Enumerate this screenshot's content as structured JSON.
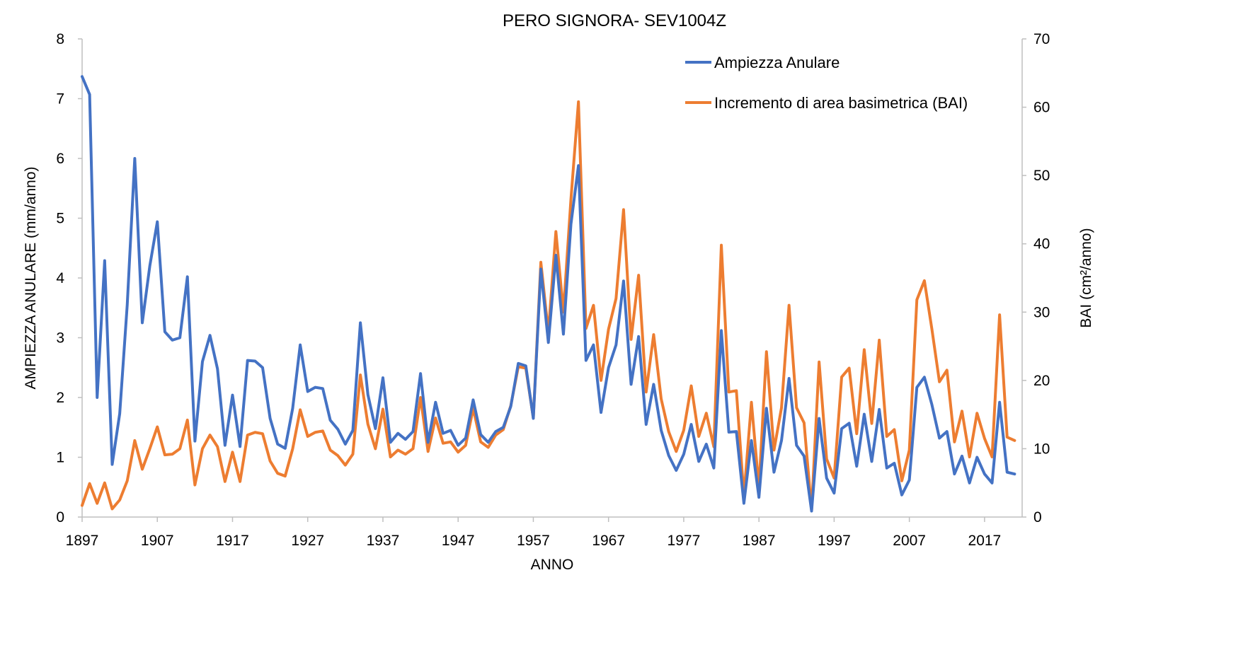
{
  "chart_data": {
    "type": "line",
    "title": "PERO SIGNORA- SEV1004Z",
    "xlabel": "ANNO",
    "ylabel_left": "AMPIEZZA ANULARE (mm/anno)",
    "ylabel_right": "BAI (cm²/anno)",
    "xlim": [
      1897,
      2022
    ],
    "x_ticks": [
      1897,
      1907,
      1917,
      1927,
      1937,
      1947,
      1957,
      1967,
      1977,
      1987,
      1997,
      2007,
      2017
    ],
    "ylim_left": [
      0,
      8
    ],
    "y_ticks_left": [
      0,
      1,
      2,
      3,
      4,
      5,
      6,
      7,
      8
    ],
    "ylim_right": [
      0,
      70
    ],
    "y_ticks_right": [
      0,
      10,
      20,
      30,
      40,
      50,
      60,
      70
    ],
    "grid": false,
    "legend_position": "top-right",
    "series": [
      {
        "name": "Ampiezza Anulare",
        "color": "#4472C4",
        "axis": "left",
        "x_start": 1897,
        "values": [
          7.37,
          7.07,
          2.0,
          4.29,
          0.88,
          1.73,
          3.55,
          6.0,
          3.25,
          4.2,
          4.94,
          3.1,
          2.96,
          3.0,
          4.02,
          1.27,
          2.6,
          3.04,
          2.48,
          1.2,
          2.04,
          1.18,
          2.62,
          2.61,
          2.5,
          1.65,
          1.22,
          1.15,
          1.82,
          2.88,
          2.1,
          2.17,
          2.15,
          1.62,
          1.47,
          1.22,
          1.45,
          3.25,
          2.05,
          1.48,
          2.33,
          1.25,
          1.4,
          1.3,
          1.43,
          2.4,
          1.25,
          1.92,
          1.4,
          1.45,
          1.2,
          1.32,
          1.96,
          1.38,
          1.25,
          1.43,
          1.5,
          1.85,
          2.57,
          2.53,
          1.65,
          4.15,
          2.92,
          4.38,
          3.06,
          4.9,
          5.88,
          2.62,
          2.88,
          1.75,
          2.5,
          2.88,
          3.95,
          2.22,
          3.02,
          1.55,
          2.22,
          1.45,
          1.03,
          0.78,
          1.05,
          1.55,
          0.93,
          1.22,
          0.82,
          3.12,
          1.42,
          1.43,
          0.23,
          1.28,
          0.33,
          1.82,
          0.75,
          1.28,
          2.32,
          1.2,
          1.02,
          0.1,
          1.65,
          0.65,
          0.4,
          1.48,
          1.57,
          0.85,
          1.72,
          0.93,
          1.8,
          0.82,
          0.9,
          0.37,
          0.62,
          2.17,
          2.34,
          1.88,
          1.32,
          1.43,
          0.72,
          1.02,
          0.57,
          1.0,
          0.72,
          0.57,
          1.92,
          0.75,
          0.72
        ]
      },
      {
        "name": "Incremento di area basimetrica (BAI)",
        "color": "#ED7D31",
        "axis": "right",
        "x_start": 1897,
        "values": [
          1.7,
          4.9,
          2.0,
          5.0,
          1.2,
          2.5,
          5.3,
          11.2,
          7.0,
          10.0,
          13.2,
          9.1,
          9.2,
          10.0,
          14.2,
          4.7,
          10.0,
          12.0,
          10.3,
          5.2,
          9.5,
          5.2,
          12.0,
          12.4,
          12.2,
          8.2,
          6.4,
          6.0,
          10.0,
          15.7,
          11.8,
          12.4,
          12.6,
          9.8,
          9.0,
          7.6,
          9.2,
          20.8,
          13.6,
          10.0,
          15.8,
          8.8,
          9.8,
          9.2,
          10.0,
          17.5,
          9.6,
          14.5,
          10.8,
          11.0,
          9.5,
          10.5,
          15.9,
          11.0,
          10.2,
          12.0,
          12.8,
          16.3,
          22.0,
          21.8,
          14.5,
          37.3,
          27.0,
          41.8,
          30.0,
          46.5,
          60.8,
          27.6,
          31.0,
          20.0,
          27.5,
          32.0,
          45.0,
          26.0,
          35.4,
          18.3,
          26.7,
          17.3,
          12.5,
          9.6,
          12.7,
          19.2,
          11.8,
          15.2,
          10.3,
          39.8,
          18.3,
          18.5,
          3.0,
          16.8,
          4.3,
          24.2,
          9.8,
          16.0,
          31.0,
          16.0,
          13.8,
          1.0,
          22.7,
          8.5,
          5.7,
          20.5,
          21.8,
          12.2,
          24.5,
          13.7,
          25.9,
          11.8,
          12.8,
          5.3,
          9.8,
          31.8,
          34.6,
          27.5,
          19.8,
          21.5,
          11.0,
          15.5,
          8.8,
          15.2,
          11.5,
          8.8,
          29.6,
          11.7,
          11.2
        ]
      }
    ]
  }
}
